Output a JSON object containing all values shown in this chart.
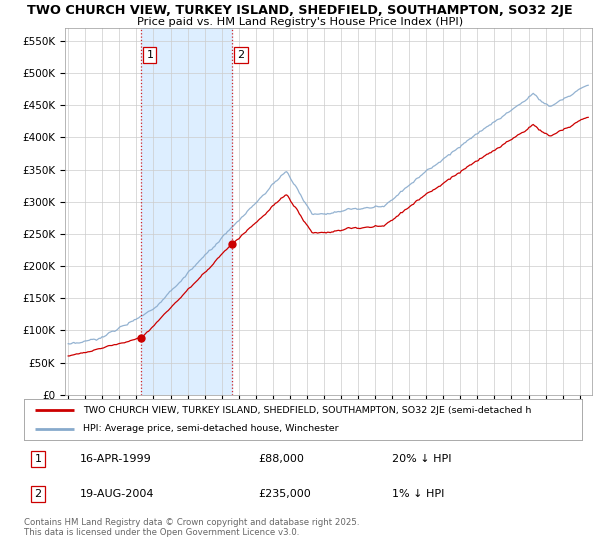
{
  "title_line1": "TWO CHURCH VIEW, TURKEY ISLAND, SHEDFIELD, SOUTHAMPTON, SO32 2JE",
  "title_line2": "Price paid vs. HM Land Registry's House Price Index (HPI)",
  "ytick_labels": [
    "£0",
    "£50K",
    "£100K",
    "£150K",
    "£200K",
    "£250K",
    "£300K",
    "£350K",
    "£400K",
    "£450K",
    "£500K",
    "£550K"
  ],
  "yticks": [
    0,
    50000,
    100000,
    150000,
    200000,
    250000,
    300000,
    350000,
    400000,
    450000,
    500000,
    550000
  ],
  "ylim": [
    0,
    570000
  ],
  "xlim_start": 1994.8,
  "xlim_end": 2025.7,
  "marker1_x": 1999.29,
  "marker1_y": 88000,
  "marker2_x": 2004.63,
  "marker2_y": 235000,
  "line1_color": "#cc0000",
  "line2_color": "#88aacc",
  "legend_line1": "TWO CHURCH VIEW, TURKEY ISLAND, SHEDFIELD, SOUTHAMPTON, SO32 2JE (semi-detached h",
  "legend_line2": "HPI: Average price, semi-detached house, Winchester",
  "ann1_num": "1",
  "ann1_date": "16-APR-1999",
  "ann1_price": "£88,000",
  "ann1_pct": "20% ↓ HPI",
  "ann2_num": "2",
  "ann2_date": "19-AUG-2004",
  "ann2_price": "£235,000",
  "ann2_pct": "1% ↓ HPI",
  "footer": "Contains HM Land Registry data © Crown copyright and database right 2025.\nThis data is licensed under the Open Government Licence v3.0.",
  "bg_color": "#ffffff",
  "grid_color": "#cccccc",
  "highlight_color": "#ddeeff",
  "vline_color": "#cc0000",
  "box_edge_color": "#cc0000"
}
